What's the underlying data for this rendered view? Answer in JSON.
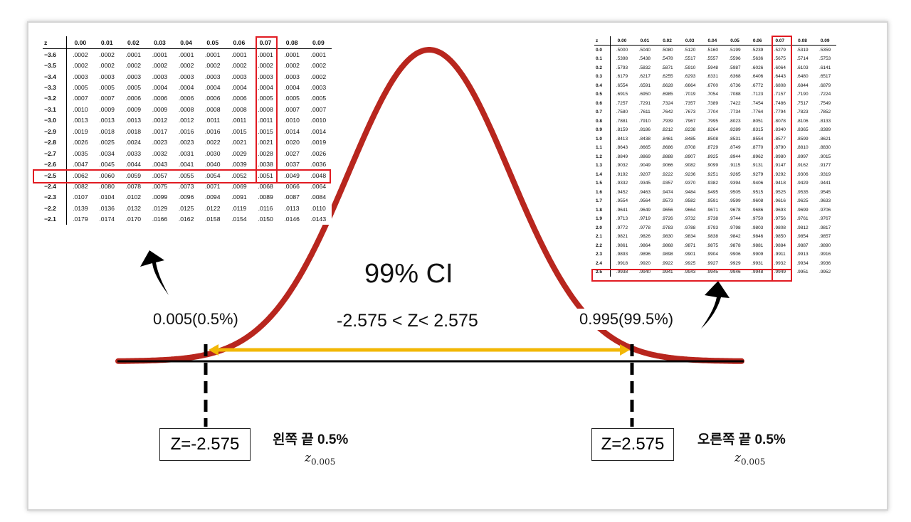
{
  "title": "99% CI",
  "range": "-2.575 < Z< 2.575",
  "left_prob": "0.005(0.5%)",
  "right_prob": "0.995(99.5%)",
  "left_z": "Z=-2.575",
  "right_z": "Z=2.575",
  "left_tail": "왼쪽  끝 0.5%",
  "right_tail": "오른쪽 끝 0.5%",
  "z_symbol": "z",
  "z_subscript": "0.005",
  "colors": {
    "curve": "#b8261e",
    "arrow": "#f2b705",
    "highlight": "#e11b22",
    "axis": "#000000"
  },
  "left_table": {
    "headers": [
      "z",
      "0.00",
      "0.01",
      "0.02",
      "0.03",
      "0.04",
      "0.05",
      "0.06",
      "0.07",
      "0.08",
      "0.09"
    ],
    "rows": [
      [
        "−3.6",
        ".0002",
        ".0002",
        ".0001",
        ".0001",
        ".0001",
        ".0001",
        ".0001",
        ".0001",
        ".0001",
        ".0001"
      ],
      [
        "−3.5",
        ".0002",
        ".0002",
        ".0002",
        ".0002",
        ".0002",
        ".0002",
        ".0002",
        ".0002",
        ".0002",
        ".0002"
      ],
      [
        "−3.4",
        ".0003",
        ".0003",
        ".0003",
        ".0003",
        ".0003",
        ".0003",
        ".0003",
        ".0003",
        ".0003",
        ".0002"
      ],
      [
        "−3.3",
        ".0005",
        ".0005",
        ".0005",
        ".0004",
        ".0004",
        ".0004",
        ".0004",
        ".0004",
        ".0004",
        ".0003"
      ],
      [
        "−3.2",
        ".0007",
        ".0007",
        ".0006",
        ".0006",
        ".0006",
        ".0006",
        ".0006",
        ".0005",
        ".0005",
        ".0005"
      ],
      [
        "−3.1",
        ".0010",
        ".0009",
        ".0009",
        ".0009",
        ".0008",
        ".0008",
        ".0008",
        ".0008",
        ".0007",
        ".0007"
      ],
      [
        "−3.0",
        ".0013",
        ".0013",
        ".0013",
        ".0012",
        ".0012",
        ".0011",
        ".0011",
        ".0011",
        ".0010",
        ".0010"
      ],
      [
        "−2.9",
        ".0019",
        ".0018",
        ".0018",
        ".0017",
        ".0016",
        ".0016",
        ".0015",
        ".0015",
        ".0014",
        ".0014"
      ],
      [
        "−2.8",
        ".0026",
        ".0025",
        ".0024",
        ".0023",
        ".0023",
        ".0022",
        ".0021",
        ".0021",
        ".0020",
        ".0019"
      ],
      [
        "−2.7",
        ".0035",
        ".0034",
        ".0033",
        ".0032",
        ".0031",
        ".0030",
        ".0029",
        ".0028",
        ".0027",
        ".0026"
      ],
      [
        "−2.6",
        ".0047",
        ".0045",
        ".0044",
        ".0043",
        ".0041",
        ".0040",
        ".0039",
        ".0038",
        ".0037",
        ".0036"
      ],
      [
        "−2.5",
        ".0062",
        ".0060",
        ".0059",
        ".0057",
        ".0055",
        ".0054",
        ".0052",
        ".0051",
        ".0049",
        ".0048"
      ],
      [
        "−2.4",
        ".0082",
        ".0080",
        ".0078",
        ".0075",
        ".0073",
        ".0071",
        ".0069",
        ".0068",
        ".0066",
        ".0064"
      ],
      [
        "−2.3",
        ".0107",
        ".0104",
        ".0102",
        ".0099",
        ".0096",
        ".0094",
        ".0091",
        ".0089",
        ".0087",
        ".0084"
      ],
      [
        "−2.2",
        ".0139",
        ".0136",
        ".0132",
        ".0129",
        ".0125",
        ".0122",
        ".0119",
        ".0116",
        ".0113",
        ".0110"
      ],
      [
        "−2.1",
        ".0179",
        ".0174",
        ".0170",
        ".0166",
        ".0162",
        ".0158",
        ".0154",
        ".0150",
        ".0146",
        ".0143"
      ]
    ],
    "highlight_row": 11,
    "highlight_col": 7
  },
  "right_table": {
    "headers": [
      "z",
      "0.00",
      "0.01",
      "0.02",
      "0.03",
      "0.04",
      "0.05",
      "0.06",
      "0.07",
      "0.08",
      "0.09"
    ],
    "rows": [
      [
        "0.0",
        ".5000",
        ".5040",
        ".5080",
        ".5120",
        ".5160",
        ".5199",
        ".5239",
        ".5279",
        ".5319",
        ".5359"
      ],
      [
        "0.1",
        ".5398",
        ".5438",
        ".5478",
        ".5517",
        ".5557",
        ".5596",
        ".5636",
        ".5675",
        ".5714",
        ".5753"
      ],
      [
        "0.2",
        ".5793",
        ".5832",
        ".5871",
        ".5910",
        ".5948",
        ".5987",
        ".6026",
        ".6064",
        ".6103",
        ".6141"
      ],
      [
        "0.3",
        ".6179",
        ".6217",
        ".6255",
        ".6293",
        ".6331",
        ".6368",
        ".6406",
        ".6443",
        ".6480",
        ".6517"
      ],
      [
        "0.4",
        ".6554",
        ".6591",
        ".6628",
        ".6664",
        ".6700",
        ".6736",
        ".6772",
        ".6808",
        ".6844",
        ".6879"
      ],
      [
        "0.5",
        ".6915",
        ".6950",
        ".6985",
        ".7019",
        ".7054",
        ".7088",
        ".7123",
        ".7157",
        ".7190",
        ".7224"
      ],
      [
        "0.6",
        ".7257",
        ".7291",
        ".7324",
        ".7357",
        ".7389",
        ".7422",
        ".7454",
        ".7486",
        ".7517",
        ".7549"
      ],
      [
        "0.7",
        ".7580",
        ".7611",
        ".7642",
        ".7673",
        ".7704",
        ".7734",
        ".7764",
        ".7794",
        ".7823",
        ".7852"
      ],
      [
        "0.8",
        ".7881",
        ".7910",
        ".7939",
        ".7967",
        ".7995",
        ".8023",
        ".8051",
        ".8078",
        ".8106",
        ".8133"
      ],
      [
        "0.9",
        ".8159",
        ".8186",
        ".8212",
        ".8238",
        ".8264",
        ".8289",
        ".8315",
        ".8340",
        ".8365",
        ".8389"
      ],
      [
        "1.0",
        ".8413",
        ".8438",
        ".8461",
        ".8485",
        ".8508",
        ".8531",
        ".8554",
        ".8577",
        ".8599",
        ".8621"
      ],
      [
        "1.1",
        ".8643",
        ".8665",
        ".8686",
        ".8708",
        ".8729",
        ".8749",
        ".8770",
        ".8790",
        ".8810",
        ".8830"
      ],
      [
        "1.2",
        ".8849",
        ".8869",
        ".8888",
        ".8907",
        ".8925",
        ".8944",
        ".8962",
        ".8980",
        ".8997",
        ".9015"
      ],
      [
        "1.3",
        ".9032",
        ".9049",
        ".9066",
        ".9082",
        ".9099",
        ".9115",
        ".9131",
        ".9147",
        ".9162",
        ".9177"
      ],
      [
        "1.4",
        ".9192",
        ".9207",
        ".9222",
        ".9236",
        ".9251",
        ".9265",
        ".9279",
        ".9292",
        ".9306",
        ".9319"
      ],
      [
        "1.5",
        ".9332",
        ".9345",
        ".9357",
        ".9370",
        ".9382",
        ".9394",
        ".9406",
        ".9418",
        ".9429",
        ".9441"
      ],
      [
        "1.6",
        ".9452",
        ".9463",
        ".9474",
        ".9484",
        ".9495",
        ".9505",
        ".9515",
        ".9525",
        ".9535",
        ".9545"
      ],
      [
        "1.7",
        ".9554",
        ".9564",
        ".9573",
        ".9582",
        ".9591",
        ".9599",
        ".9608",
        ".9616",
        ".9625",
        ".9633"
      ],
      [
        "1.8",
        ".9641",
        ".9649",
        ".9656",
        ".9664",
        ".9671",
        ".9678",
        ".9686",
        ".9693",
        ".9699",
        ".9706"
      ],
      [
        "1.9",
        ".9713",
        ".9719",
        ".9726",
        ".9732",
        ".9738",
        ".9744",
        ".9750",
        ".9756",
        ".9761",
        ".9767"
      ],
      [
        "2.0",
        ".9772",
        ".9778",
        ".9783",
        ".9788",
        ".9793",
        ".9798",
        ".9803",
        ".9808",
        ".9812",
        ".9817"
      ],
      [
        "2.1",
        ".9821",
        ".9826",
        ".9830",
        ".9834",
        ".9838",
        ".9842",
        ".9846",
        ".9850",
        ".9854",
        ".9857"
      ],
      [
        "2.2",
        ".9861",
        ".9864",
        ".9868",
        ".9871",
        ".9875",
        ".9878",
        ".9881",
        ".9884",
        ".9887",
        ".9890"
      ],
      [
        "2.3",
        ".9893",
        ".9896",
        ".9898",
        ".9901",
        ".9904",
        ".9906",
        ".9909",
        ".9911",
        ".9913",
        ".9916"
      ],
      [
        "2.4",
        ".9918",
        ".9920",
        ".9922",
        ".9925",
        ".9927",
        ".9929",
        ".9931",
        ".9932",
        ".9934",
        ".9936"
      ],
      [
        "2.5",
        ".9938",
        ".9940",
        ".9941",
        ".9943",
        ".9945",
        ".9946",
        ".9948",
        ".9949",
        ".9951",
        ".9952"
      ]
    ],
    "highlight_row": 25,
    "highlight_col": 7
  }
}
